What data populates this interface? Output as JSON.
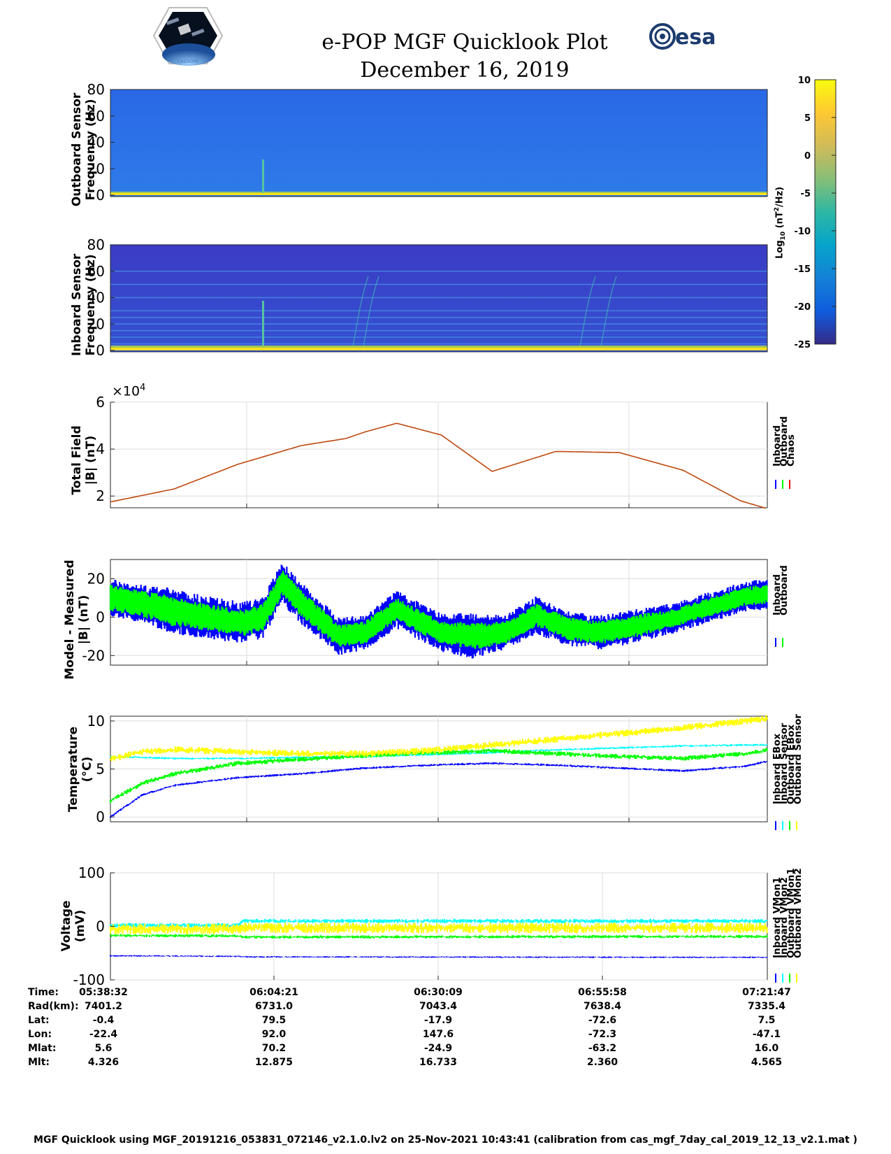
{
  "header": {
    "title_line1": "e-POP MGF Quicklook Plot",
    "title_line2": "December 16, 2019",
    "left_logo": "CASSIOPE",
    "right_logo": "esa"
  },
  "footer": "MGF Quicklook using MGF_20191216_053831_072146_v2.1.0.lv2 on 25-Nov-2021 10:43:41 (calibration from cas_mgf_7day_cal_2019_12_13_v2.1.mat )",
  "colorbar": {
    "label_base": "Log",
    "label_sub": "10",
    "label_paren": "(nT",
    "label_sup": "2",
    "label_end": "/Hz)",
    "ticks": [
      "10",
      "5",
      "0",
      "-5",
      "-10",
      "-15",
      "-20",
      "-25"
    ],
    "range": [
      -25,
      10
    ],
    "colormap": "parula"
  },
  "panels": {
    "outboard_spectrogram": {
      "ylabel1": "Outboard Sensor",
      "ylabel2": "Frequency (Hz)",
      "yticks": [
        "80",
        "60",
        "40",
        "20",
        "0"
      ]
    },
    "inboard_spectrogram": {
      "ylabel1": "Inboard Sensor",
      "ylabel2": "Frequency (Hz)",
      "yticks": [
        "80",
        "60",
        "40",
        "20",
        "0"
      ]
    },
    "total_field": {
      "ylabel1": "Total Field",
      "ylabel2": "|B| (nT)",
      "yticks": [
        "6",
        "4",
        "2"
      ],
      "exponent_base": "×10",
      "exponent_pow": "4",
      "legend": [
        "Inboard",
        "Outboard",
        "Chaos"
      ],
      "legend_colors": [
        "#0000ff",
        "#00ff00",
        "#ff0000"
      ]
    },
    "model_measured": {
      "ylabel1": "Model - Measured",
      "ylabel2": "|B| (nT)",
      "yticks": [
        "20",
        "0",
        "-20"
      ],
      "legend": [
        "Inboard",
        "Outboard"
      ],
      "legend_colors": [
        "#0000ff",
        "#00ff00"
      ]
    },
    "temperature": {
      "ylabel1": "Temperature",
      "ylabel2": "(°C)",
      "yticks": [
        "10",
        "5",
        "0"
      ],
      "legend": [
        "Inboard EBox",
        "Inboard Sensor",
        "Outboard EBox",
        "Outboard Sensor"
      ],
      "legend_colors": [
        "#0000ff",
        "#00ffff",
        "#00ff00",
        "#ffff00"
      ]
    },
    "voltage": {
      "ylabel1": "Voltage",
      "ylabel2": "(mV)",
      "yticks": [
        "100",
        "0",
        "-100"
      ],
      "legend": [
        "Inboard VMon1",
        "Inboard VMon2",
        "Outboard VMon1",
        "Outboard VMon2"
      ],
      "legend_colors": [
        "#0000ff",
        "#00ffff",
        "#00ff00",
        "#ffff00"
      ]
    }
  },
  "ephemeris": {
    "labels": [
      "Time:",
      "Rad(km):",
      "Lat:",
      "Lon:",
      "Mlat:",
      "Mlt:"
    ],
    "columns": [
      [
        "05:38:32",
        "7401.2",
        "-0.4",
        "-22.4",
        "5.6",
        "4.326"
      ],
      [
        "06:04:21",
        "6731.0",
        "79.5",
        "92.0",
        "70.2",
        "12.875"
      ],
      [
        "06:30:09",
        "7043.4",
        "-17.9",
        "147.6",
        "-24.9",
        "16.733"
      ],
      [
        "06:55:58",
        "7638.4",
        "-72.6",
        "-72.3",
        "-63.2",
        "2.360"
      ],
      [
        "07:21:47",
        "7335.4",
        "7.5",
        "-47.1",
        "16.0",
        "4.565"
      ]
    ]
  },
  "chart_data": [
    {
      "type": "heatmap",
      "title": "Outboard Sensor spectrogram",
      "ylabel": "Outboard Sensor Frequency (Hz)",
      "ylim": [
        0,
        80
      ],
      "zlim": [
        -25,
        10
      ],
      "x": [
        "05:38:32",
        "07:21:47"
      ],
      "features": [
        {
          "x_frac": 0.235,
          "f_hz": [
            0,
            28
          ],
          "level": -9
        },
        {
          "x_frac": 0.63,
          "f_hz": [
            0,
            5
          ],
          "level": -7
        }
      ],
      "background_level": -14,
      "low_freq_band_level": 6
    },
    {
      "type": "heatmap",
      "title": "Inboard Sensor spectrogram",
      "ylabel": "Inboard Sensor Frequency (Hz)",
      "ylim": [
        0,
        80
      ],
      "zlim": [
        -25,
        10
      ],
      "x": [
        "05:38:32",
        "07:21:47"
      ],
      "harmonic_lines_hz": [
        5,
        10,
        15,
        20,
        25,
        30,
        40,
        50,
        60
      ],
      "background_level": -20,
      "low_freq_band_level": 6
    },
    {
      "type": "line",
      "title": "Total Field",
      "ylabel": "|B| (nT)",
      "ylim": [
        15000,
        60000
      ],
      "x_minutes": [
        0,
        10,
        20,
        30,
        37,
        40,
        45,
        52,
        60,
        70,
        80,
        90,
        99,
        103.25
      ],
      "series": [
        {
          "name": "Inboard",
          "color": "#0000ff",
          "values": [
            17500,
            23000,
            33500,
            41500,
            44500,
            47300,
            51000,
            46000,
            30500,
            39000,
            38500,
            31000,
            18000,
            14600
          ]
        },
        {
          "name": "Outboard",
          "color": "#00ff00",
          "values": [
            17500,
            23000,
            33500,
            41500,
            44500,
            47300,
            51000,
            46000,
            30500,
            39000,
            38500,
            31000,
            18000,
            14600
          ]
        },
        {
          "name": "Chaos",
          "color": "#ff0000",
          "values": [
            17500,
            23000,
            33500,
            41500,
            44500,
            47300,
            51000,
            46000,
            30500,
            39000,
            38500,
            31000,
            18000,
            14600
          ]
        }
      ],
      "grid": true
    },
    {
      "type": "line",
      "title": "Model - Measured",
      "ylabel": "|B| (nT)",
      "ylim": [
        -25,
        30
      ],
      "x_minutes": [
        0,
        5,
        10,
        15,
        21,
        24,
        27,
        30,
        36,
        40,
        45,
        52,
        57,
        62,
        67,
        72,
        77,
        82,
        88,
        94,
        100,
        103.25
      ],
      "series": [
        {
          "name": "Inboard",
          "color": "#0000ff",
          "values": [
            10,
            7,
            3,
            0,
            -3,
            0,
            18,
            7,
            -10,
            -8,
            4,
            -8,
            -10,
            -8,
            1,
            -6,
            -8,
            -5,
            -1,
            5,
            11,
            12
          ],
          "spread": [
            10,
            10,
            12,
            11,
            11,
            11,
            11,
            11,
            10,
            9,
            10,
            10,
            12,
            9,
            10,
            9,
            9,
            9,
            8,
            8,
            8,
            8
          ]
        },
        {
          "name": "Outboard",
          "color": "#00ff00",
          "values": [
            10,
            7,
            3,
            0,
            -3,
            0,
            18,
            7,
            -10,
            -8,
            4,
            -8,
            -10,
            -8,
            1,
            -6,
            -8,
            -5,
            -1,
            5,
            11,
            12
          ],
          "spread": [
            7,
            7,
            8,
            7,
            7,
            7,
            7,
            7,
            6,
            6,
            6,
            6,
            7,
            6,
            6,
            6,
            6,
            6,
            5,
            5,
            5,
            5
          ]
        }
      ],
      "grid": true
    },
    {
      "type": "line",
      "title": "Temperature",
      "ylabel": "(°C)",
      "ylim": [
        -0.5,
        10.5
      ],
      "x_minutes": [
        0,
        5,
        10,
        20,
        30,
        40,
        50,
        60,
        70,
        80,
        90,
        100,
        103.25
      ],
      "series": [
        {
          "name": "Inboard EBox",
          "color": "#0000ff",
          "values": [
            0,
            2.3,
            3.3,
            4.1,
            4.5,
            5.1,
            5.4,
            5.6,
            5.4,
            5.1,
            4.8,
            5.3,
            5.8
          ]
        },
        {
          "name": "Inboard Sensor",
          "color": "#00ffff",
          "values": [
            6.3,
            6.2,
            6.1,
            6.1,
            6.2,
            6.3,
            6.5,
            6.7,
            7.0,
            7.2,
            7.4,
            7.5,
            7.5
          ]
        },
        {
          "name": "Outboard EBox",
          "color": "#00ff00",
          "values": [
            1.7,
            3.5,
            4.5,
            5.6,
            6.0,
            6.4,
            6.7,
            6.9,
            6.6,
            6.3,
            6.1,
            6.6,
            7.0
          ]
        },
        {
          "name": "Outboard Sensor",
          "color": "#ffff00",
          "values": [
            6.0,
            6.8,
            7.0,
            6.8,
            6.6,
            6.6,
            6.9,
            7.5,
            8.1,
            8.7,
            9.3,
            10.0,
            10.3
          ]
        }
      ],
      "grid": true
    },
    {
      "type": "line",
      "title": "Voltage",
      "ylabel": "(mV)",
      "ylim": [
        -100,
        100
      ],
      "x_minutes": [
        0,
        20,
        21,
        103.25
      ],
      "series": [
        {
          "name": "Inboard VMon1",
          "color": "#0000ff",
          "values": [
            -55,
            -56,
            -57,
            -58
          ]
        },
        {
          "name": "Inboard VMon2",
          "color": "#00ffff",
          "values": [
            2,
            2,
            10,
            10
          ]
        },
        {
          "name": "Outboard VMon1",
          "color": "#00ff00",
          "values": [
            -17,
            -18,
            -20,
            -19
          ]
        },
        {
          "name": "Outboard VMon2",
          "color": "#ffff00",
          "values": [
            -5,
            -5,
            -3,
            -3
          ]
        }
      ],
      "grid": true
    }
  ]
}
